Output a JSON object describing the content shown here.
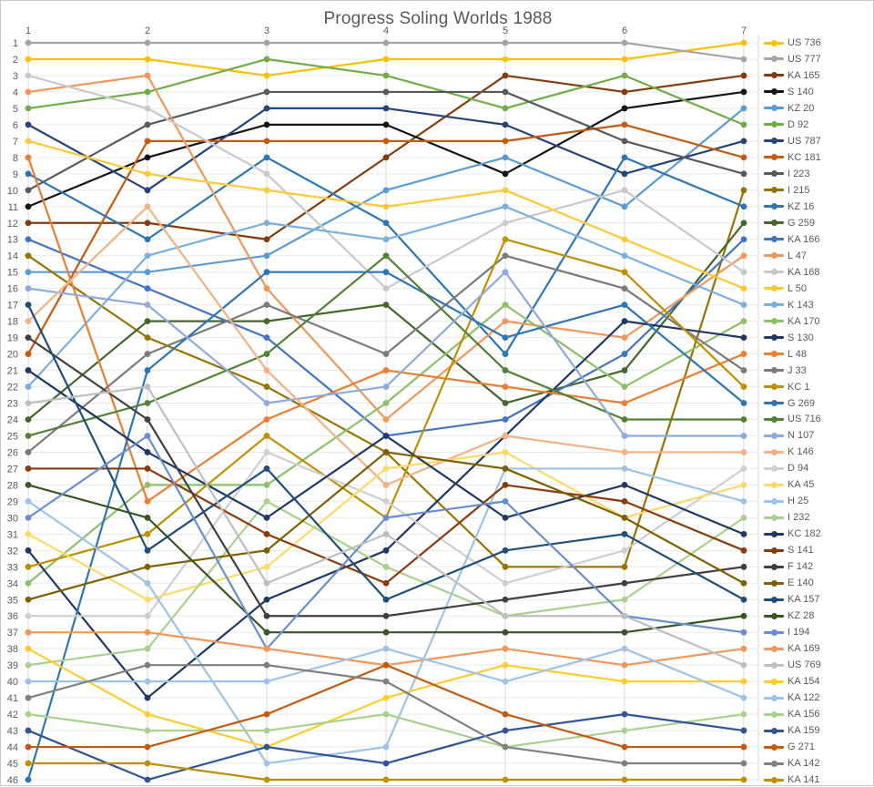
{
  "chart": {
    "title": "Progress Soling Worlds 1988",
    "type": "bump-line",
    "legend_position": "right",
    "grid": true
  },
  "chart_data": {
    "type": "line",
    "title": "Progress Soling Worlds 1988",
    "xlabel": "",
    "ylabel": "",
    "x_labels": [
      "1",
      "2",
      "3",
      "4",
      "5",
      "6",
      "7"
    ],
    "rank_min": 1,
    "rank_max": 46,
    "y_axis_ticks": [
      1,
      2,
      3,
      4,
      5,
      6,
      7,
      8,
      9,
      10,
      11,
      12,
      13,
      14,
      15,
      16,
      17,
      18,
      19,
      20,
      21,
      22,
      23,
      24,
      25,
      26,
      27,
      28,
      29,
      30,
      31,
      32,
      33,
      34,
      35,
      36,
      37,
      38,
      39,
      40,
      41,
      42,
      43,
      44,
      45,
      46
    ],
    "series": [
      {
        "name": "US 736",
        "color": "#FFC000",
        "ranks": [
          2,
          2,
          3,
          2,
          2,
          2,
          1
        ]
      },
      {
        "name": "US 777",
        "color": "#A5A5A5",
        "ranks": [
          1,
          1,
          1,
          1,
          1,
          1,
          2
        ]
      },
      {
        "name": "KA 165",
        "color": "#843C0C",
        "ranks": [
          12,
          12,
          13,
          8,
          3,
          4,
          3
        ]
      },
      {
        "name": "S 140",
        "color": "#151515",
        "ranks": [
          11,
          8,
          6,
          6,
          9,
          5,
          4
        ]
      },
      {
        "name": "KZ 20",
        "color": "#5B9BD5",
        "ranks": [
          15,
          15,
          14,
          10,
          8,
          11,
          5
        ]
      },
      {
        "name": "D 92",
        "color": "#70AD47",
        "ranks": [
          5,
          4,
          2,
          3,
          5,
          3,
          6
        ]
      },
      {
        "name": "US 787",
        "color": "#264478",
        "ranks": [
          6,
          10,
          5,
          5,
          6,
          9,
          7
        ]
      },
      {
        "name": "KC 181",
        "color": "#C55A11",
        "ranks": [
          20,
          7,
          7,
          7,
          7,
          6,
          8
        ]
      },
      {
        "name": "I 223",
        "color": "#595959",
        "ranks": [
          10,
          6,
          4,
          4,
          4,
          7,
          9
        ]
      },
      {
        "name": "I 215",
        "color": "#997300",
        "ranks": [
          14,
          19,
          22,
          26,
          33,
          33,
          10
        ]
      },
      {
        "name": "KZ 16",
        "color": "#2E75B6",
        "ranks": [
          9,
          13,
          8,
          12,
          20,
          8,
          11
        ]
      },
      {
        "name": "G 259",
        "color": "#43682B",
        "ranks": [
          24,
          18,
          18,
          17,
          23,
          21,
          12
        ]
      },
      {
        "name": "KA 166",
        "color": "#4472C4",
        "ranks": [
          13,
          16,
          19,
          25,
          24,
          20,
          13
        ]
      },
      {
        "name": "L 47",
        "color": "#F1975A",
        "ranks": [
          4,
          3,
          16,
          24,
          18,
          19,
          14
        ]
      },
      {
        "name": "KA 168",
        "color": "#C9C9C9",
        "ranks": [
          3,
          5,
          9,
          16,
          12,
          10,
          15
        ]
      },
      {
        "name": "L 50",
        "color": "#FFC933",
        "ranks": [
          7,
          9,
          10,
          11,
          10,
          13,
          16
        ]
      },
      {
        "name": "K 143",
        "color": "#7CAFDD",
        "ranks": [
          22,
          14,
          12,
          13,
          11,
          14,
          17
        ]
      },
      {
        "name": "KA 170",
        "color": "#8CC168",
        "ranks": [
          34,
          28,
          28,
          23,
          17,
          22,
          18
        ]
      },
      {
        "name": "S 130",
        "color": "#203864",
        "ranks": [
          32,
          41,
          35,
          32,
          25,
          18,
          19
        ]
      },
      {
        "name": "L 48",
        "color": "#ED7D31",
        "ranks": [
          8,
          29,
          24,
          21,
          22,
          23,
          20
        ]
      },
      {
        "name": "J 33",
        "color": "#7B7B7B",
        "ranks": [
          26,
          20,
          17,
          20,
          14,
          16,
          21
        ]
      },
      {
        "name": "KC 1",
        "color": "#BF9000",
        "ranks": [
          33,
          31,
          25,
          30,
          13,
          15,
          22
        ]
      },
      {
        "name": "G 269",
        "color": "#2E75B6",
        "ranks": [
          46,
          21,
          15,
          15,
          19,
          17,
          23
        ]
      },
      {
        "name": "US 716",
        "color": "#538135",
        "ranks": [
          25,
          23,
          20,
          14,
          21,
          24,
          24
        ]
      },
      {
        "name": "N 107",
        "color": "#8FAADC",
        "ranks": [
          16,
          17,
          23,
          22,
          15,
          25,
          25
        ]
      },
      {
        "name": "K 146",
        "color": "#F4B183",
        "ranks": [
          18,
          11,
          21,
          28,
          25,
          26,
          26
        ]
      },
      {
        "name": "D 94",
        "color": "#CFCFCF",
        "ranks": [
          36,
          36,
          26,
          29,
          34,
          32,
          27
        ]
      },
      {
        "name": "KA 45",
        "color": "#FFD966",
        "ranks": [
          31,
          35,
          33,
          27,
          26,
          30,
          28
        ]
      },
      {
        "name": "H 25",
        "color": "#9DC3E6",
        "ranks": [
          29,
          34,
          45,
          44,
          27,
          27,
          29
        ]
      },
      {
        "name": "I 232",
        "color": "#A9D18E",
        "ranks": [
          39,
          38,
          29,
          33,
          36,
          35,
          30
        ]
      },
      {
        "name": "KC 182",
        "color": "#1F3864",
        "ranks": [
          21,
          26,
          30,
          25,
          30,
          28,
          31
        ]
      },
      {
        "name": "S 141",
        "color": "#8B3A0E",
        "ranks": [
          27,
          27,
          31,
          34,
          28,
          29,
          32
        ]
      },
      {
        "name": "F 142",
        "color": "#404040",
        "ranks": [
          19,
          24,
          36,
          36,
          35,
          34,
          33
        ]
      },
      {
        "name": "E 140",
        "color": "#7F6000",
        "ranks": [
          35,
          33,
          32,
          26,
          27,
          30,
          34
        ]
      },
      {
        "name": "KA 157",
        "color": "#1F4E79",
        "ranks": [
          17,
          32,
          27,
          35,
          32,
          31,
          35
        ]
      },
      {
        "name": "KZ 28",
        "color": "#375623",
        "ranks": [
          28,
          30,
          37,
          37,
          37,
          37,
          36
        ]
      },
      {
        "name": "I 194",
        "color": "#698ED0",
        "ranks": [
          30,
          25,
          38,
          30,
          29,
          36,
          37
        ]
      },
      {
        "name": "KA 169",
        "color": "#F1975A",
        "ranks": [
          37,
          37,
          38,
          39,
          38,
          39,
          38
        ]
      },
      {
        "name": "US 769",
        "color": "#BFBFBF",
        "ranks": [
          23,
          22,
          34,
          31,
          36,
          36,
          39
        ]
      },
      {
        "name": "KA 154",
        "color": "#FFCD2E",
        "ranks": [
          38,
          42,
          44,
          41,
          39,
          40,
          40
        ]
      },
      {
        "name": "KA 122",
        "color": "#9DC3E6",
        "ranks": [
          40,
          40,
          40,
          38,
          40,
          38,
          41
        ]
      },
      {
        "name": "KA 156",
        "color": "#A9D18E",
        "ranks": [
          42,
          43,
          43,
          42,
          44,
          43,
          42
        ]
      },
      {
        "name": "KA 159",
        "color": "#2F5597",
        "ranks": [
          43,
          46,
          44,
          45,
          43,
          42,
          43
        ]
      },
      {
        "name": "G 271",
        "color": "#C45911",
        "ranks": [
          44,
          44,
          42,
          39,
          42,
          44,
          44
        ]
      },
      {
        "name": "KA 142",
        "color": "#808080",
        "ranks": [
          41,
          39,
          39,
          40,
          44,
          45,
          45
        ]
      },
      {
        "name": "KA 141",
        "color": "#BF8F00",
        "ranks": [
          45,
          45,
          46,
          46,
          46,
          46,
          46
        ]
      }
    ]
  }
}
